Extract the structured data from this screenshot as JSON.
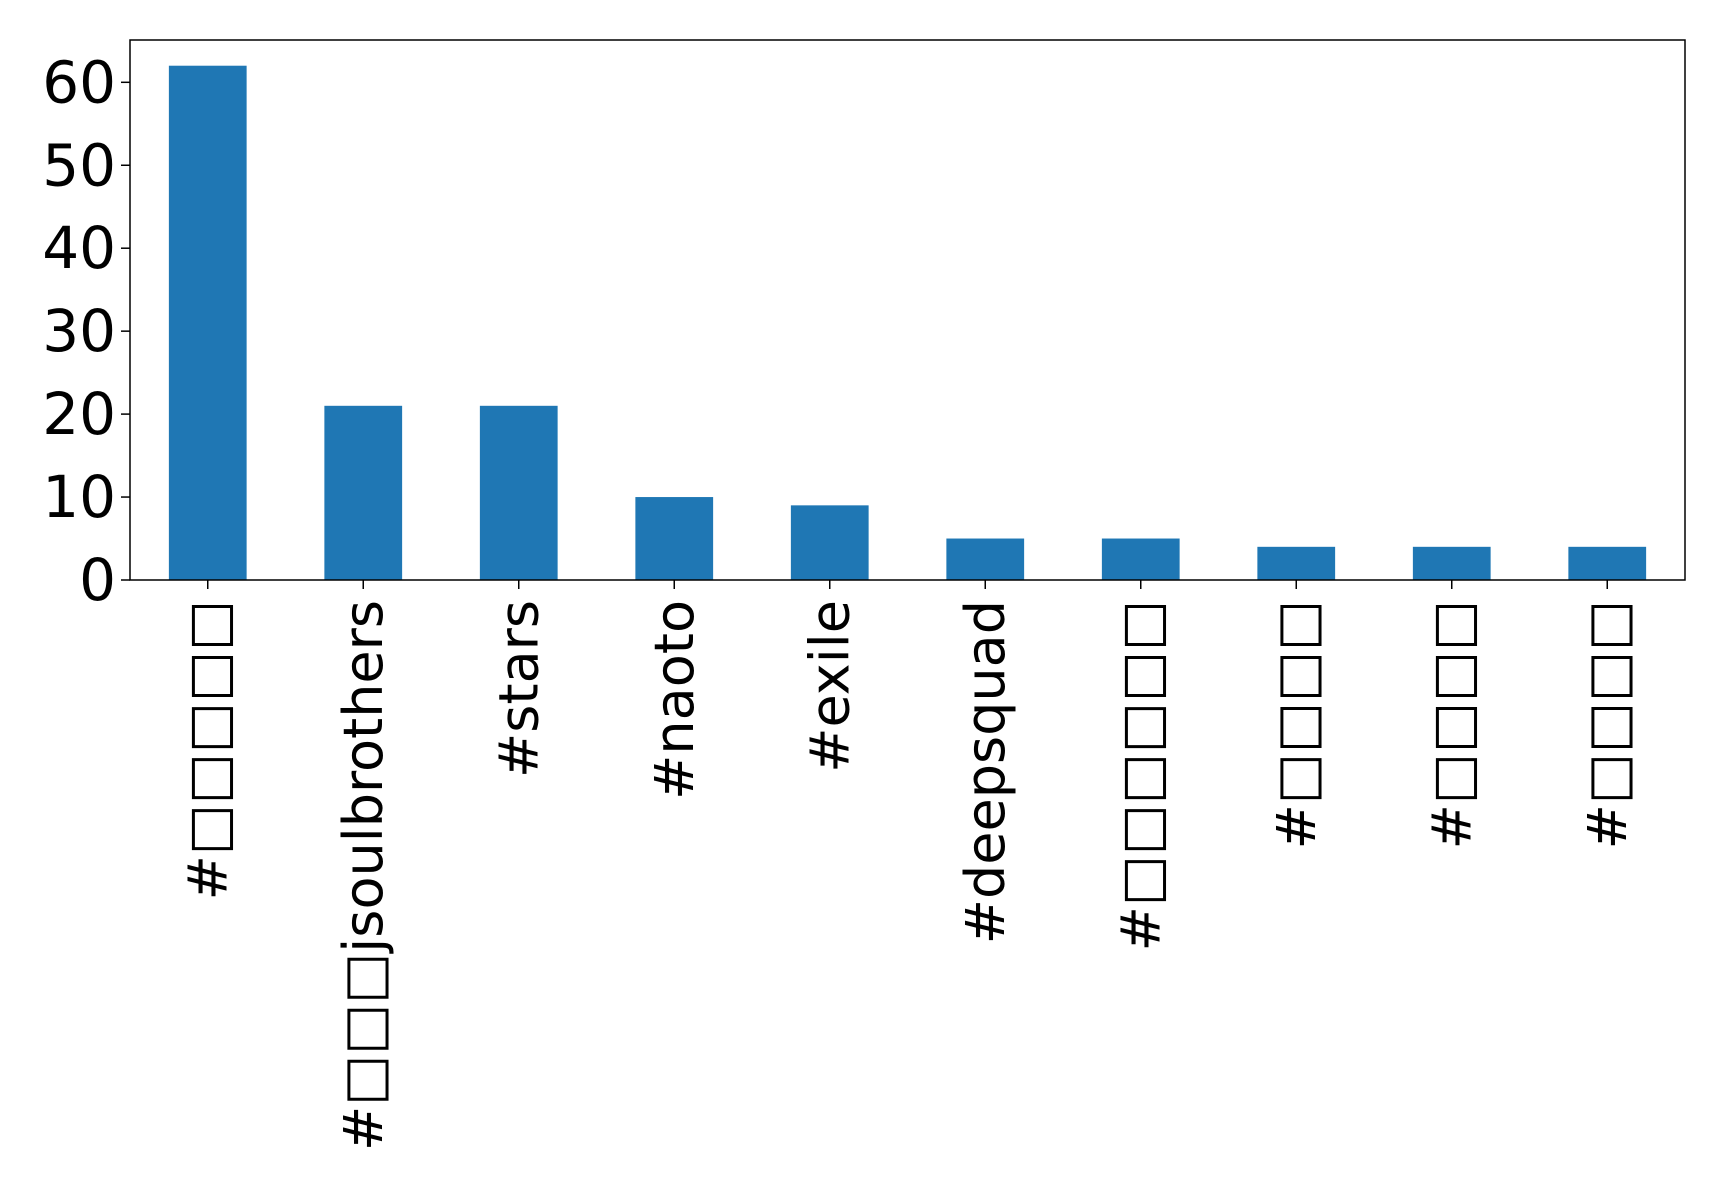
{
  "chart_data": {
    "type": "bar",
    "categories": [
      "#□□□□□",
      "#□□□jsoulbrothers",
      "#stars",
      "#naoto",
      "#exile",
      "#deepsquad",
      "#□□□□□□",
      "#□□□□",
      "#□□□□",
      "#□□□□"
    ],
    "values": [
      62,
      21,
      21,
      10,
      9,
      5,
      5,
      4,
      4,
      4
    ],
    "yticks": [
      0,
      10,
      20,
      30,
      40,
      50,
      60
    ],
    "ylim": [
      0,
      65.1
    ],
    "title": "",
    "xlabel": "",
    "ylabel": "",
    "bar_color": "#1f77b4",
    "grid": false,
    "legend": "none"
  }
}
